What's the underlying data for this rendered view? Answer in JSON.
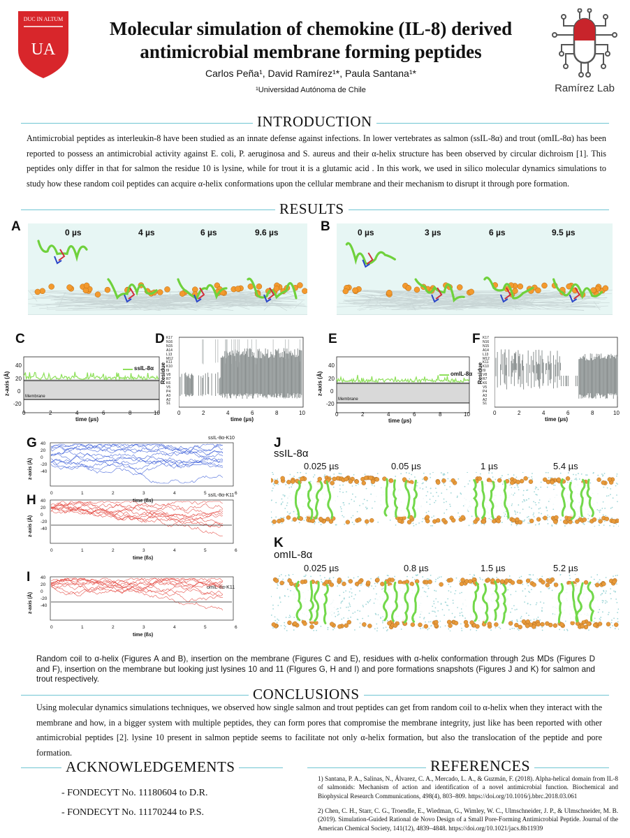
{
  "header": {
    "logo_left_text": "DUC IN ALTUM",
    "logo_left_initials": "UA",
    "title_line1": "Molecular simulation of chemokine (IL-8) derived",
    "title_line2": "antimicrobial membrane forming peptides",
    "authors": "Carlos Peña¹, David Ramírez¹*, Paula Santana¹*",
    "affiliation": "¹Universidad Autónoma de Chile",
    "logo_right_text": "Ramírez Lab"
  },
  "sections": {
    "introduction": "INTRODUCTION",
    "results": "RESULTS",
    "conclusions": "CONCLUSIONS",
    "acknowledgements": "ACKNOWLEDGEMENTS",
    "references": "REFERENCES"
  },
  "introduction_text": "Antimicrobial peptides as interleukin-8 have been studied as an innate defense against infections. In lower vertebrates as salmon (ssIL-8α) and trout (omIL-8α) has been reported to possess an antimicrobial activity against E. coli, P. aeruginosa and S. aureus and their α-helix structure has been observed by circular dichroism [1]. This peptides only differ in that for salmon the residue 10 is lysine, while for trout it is a glutamic acid . In this work, we used in silico molecular dynamics simulations to study how these random coil peptides can acquire α-helix conformations upon the cellular membrane and their mechanism to disrupt it through pore formation.",
  "panels": {
    "A": {
      "letter": "A",
      "times": [
        "0 µs",
        "4 µs",
        "6 µs",
        "9.6 µs"
      ]
    },
    "B": {
      "letter": "B",
      "times": [
        "0 µs",
        "3 µs",
        "6 µs",
        "9.5 µs"
      ]
    },
    "C": {
      "letter": "C",
      "legend": "ssIL-8α",
      "membrane_label": "Membrane",
      "ylabel": "z-axis (Å)",
      "xlabel": "time (µs)",
      "yticks": [
        "40",
        "20",
        "0",
        "-20"
      ],
      "xticks": [
        "0",
        "2",
        "4",
        "6",
        "8",
        "10"
      ]
    },
    "D": {
      "letter": "D",
      "ylabel": "Residue",
      "xlabel": "time (µs)",
      "residues": [
        "K17",
        "N16",
        "N15",
        "A14",
        "L13",
        "M12",
        "K11",
        "K10",
        "I9",
        "V8",
        "R7",
        "K6",
        "V5",
        "P4",
        "A3",
        "A2",
        "S1"
      ],
      "xticks": [
        "0",
        "2",
        "4",
        "6",
        "8",
        "10"
      ]
    },
    "E": {
      "letter": "E",
      "legend": "omIL-8α",
      "membrane_label": "Membrane",
      "ylabel": "z-axis (Å)",
      "xlabel": "time (µs)",
      "yticks": [
        "40",
        "20",
        "0",
        "-20"
      ],
      "xticks": [
        "0",
        "2",
        "4",
        "6",
        "8",
        "10"
      ]
    },
    "F": {
      "letter": "F",
      "ylabel": "Residue",
      "xlabel": "time (µs)",
      "residues": [
        "K17",
        "N16",
        "N15",
        "A14",
        "L13",
        "M12",
        "K11",
        "K10",
        "I9",
        "V8",
        "R7",
        "K6",
        "V5",
        "P4",
        "A3",
        "A2",
        "S1"
      ],
      "xticks": [
        "0",
        "2",
        "4",
        "6",
        "8",
        "10"
      ]
    },
    "G": {
      "letter": "G",
      "legend": "ssIL-8α-K10",
      "ylabel": "z-axis (Å)",
      "xlabel": "time (ßs)",
      "yticks": [
        "40",
        "20",
        "0",
        "-20",
        "-40"
      ],
      "xticks": [
        "0",
        "1",
        "2",
        "3",
        "4",
        "5",
        "6"
      ],
      "color": "#2f54d6"
    },
    "H": {
      "letter": "H",
      "legend": "ssIL-8α-K11",
      "ylabel": "z-axis (Å)",
      "xlabel": "time (ßs)",
      "yticks": [
        "40",
        "20",
        "0",
        "-20",
        "-40"
      ],
      "xticks": [
        "0",
        "1",
        "2",
        "3",
        "4",
        "5",
        "6"
      ],
      "color": "#e23b32"
    },
    "I": {
      "letter": "I",
      "legend": "omIL-8α-K11",
      "ylabel": "z-axis (Å)",
      "xlabel": "time (ßs)",
      "yticks": [
        "40",
        "20",
        "0",
        "-20",
        "-40"
      ],
      "xticks": [
        "0",
        "1",
        "2",
        "3",
        "4",
        "5",
        "6"
      ],
      "color": "#e23b32"
    },
    "J": {
      "letter": "J",
      "name": "ssIL-8α",
      "times": [
        "0.025 µs",
        "0.05 µs",
        "1 µs",
        "5.4 µs"
      ]
    },
    "K": {
      "letter": "K",
      "name": "omIL-8α",
      "times": [
        "0.025 µs",
        "0.8 µs",
        "1.5 µs",
        "5.2 µs"
      ]
    }
  },
  "results_caption": "Random coil to α-helix (Figures A and B), insertion on the membrane (Figures C and E), residues with α-helix conformation through 2us MDs (Figures D and F), insertion on the membrane but looking just lysines 10 and 11 (FIgures G, H and I) and pore formations snapshots (Figures J and K) for salmon and trout respectively.",
  "conclusions_text": "Using molecular dynamics simulations techniques, we observed how single salmon and trout peptides can get from random coil to α-helix when they interact with the membrane and how, in a bigger system with multiple peptides, they can form pores that compromise the membrane integrity, just like has been reported with other antimicrobial peptides [2]. lysine 10 present in salmon peptide seems to facilitate not only α-helix formation, but also the translocation of the peptide and pore formation.",
  "acknowledgements": [
    "- FONDECYT No. 11180604 to D.R.",
    "- FONDECYT No. 11170244 to P.S."
  ],
  "references": [
    "1) Santana, P. A., Salinas, N., Álvarez, C. A., Mercado, L. A., & Guzmán, F. (2018). Alpha-helical domain from IL-8 of salmonids: Mechanism of action and identification of a novel antimicrobial function. Biochemical and Biophysical Research Communications, 498(4), 803–809. https://doi.org/10.1016/j.bbrc.2018.03.061",
    "2) Chen, C. H., Starr, C. G., Troendle, E., Wiedman, G., Wimley, W. C., Ulmschneider, J. P., & Ulmschneider, M. B. (2019). Simulation-Guided Rational de Novo Design of a Small Pore-Forming Antimicrobial Peptide. Journal of the American Chemical Society, 141(12), 4839–4848. https://doi.org/10.1021/jacs.8b11939"
  ]
}
